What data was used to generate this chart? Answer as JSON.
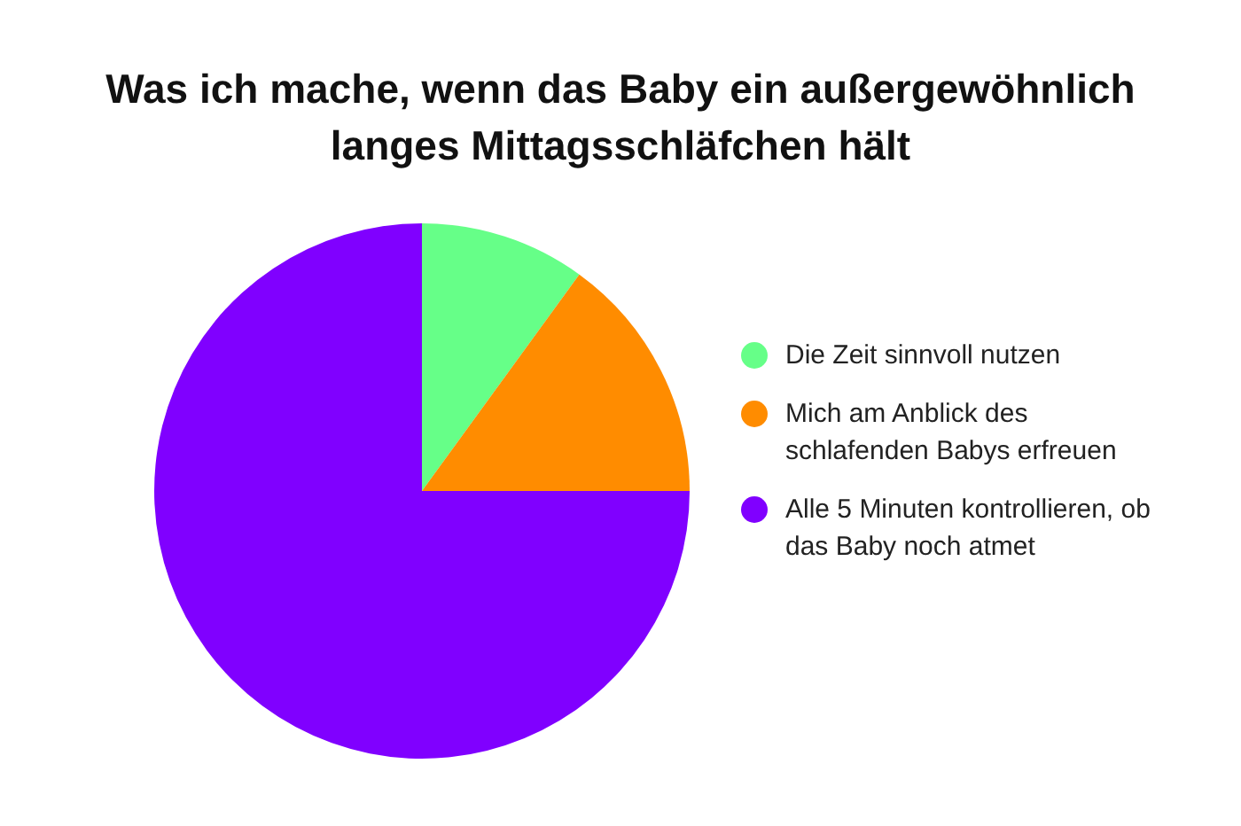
{
  "chart_data": {
    "type": "pie",
    "title": "Was ich mache, wenn das Baby ein außergewöhnlich langes Mittagsschläfchen hält",
    "categories": [
      "Die Zeit sinnvoll nutzen",
      "Mich am Anblick des schlafenden Babys erfreuen",
      "Alle 5 Minuten kontrollieren, ob das Baby noch atmet"
    ],
    "values": [
      10,
      15,
      75
    ],
    "colors": [
      "#66ff88",
      "#ff8c00",
      "#8000ff"
    ],
    "legend": "right"
  }
}
